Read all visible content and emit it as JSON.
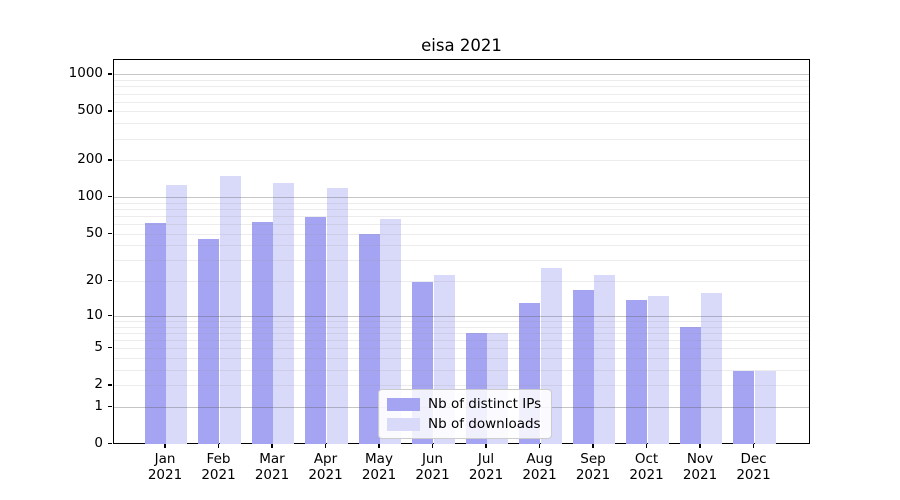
{
  "chart_data": {
    "type": "bar",
    "title": "eisa 2021",
    "categories": [
      "Jan 2021",
      "Feb 2021",
      "Mar 2021",
      "Apr 2021",
      "May 2021",
      "Jun 2021",
      "Jul 2021",
      "Aug 2021",
      "Sep 2021",
      "Oct 2021",
      "Nov 2021",
      "Dec 2021"
    ],
    "series": [
      {
        "name": "Nb of distinct IPs",
        "color": "#a4a4f2",
        "values": [
          62,
          46,
          63,
          69,
          50,
          20,
          7,
          13,
          17,
          14,
          8,
          3
        ]
      },
      {
        "name": "Nb of downloads",
        "color": "#d9d9fa",
        "values": [
          127,
          151,
          131,
          119,
          67,
          23,
          7,
          26,
          23,
          15,
          16,
          3
        ]
      }
    ],
    "yscale": "log1p",
    "ylim": [
      0,
      1000
    ],
    "yticks": [
      0,
      1,
      2,
      5,
      10,
      20,
      50,
      100,
      200,
      500,
      1000
    ],
    "grid": "on",
    "legend_position": "lower center",
    "axis_color": "#000000",
    "grid_major_color": "#c8c8c8",
    "grid_minor_color": "#ececec",
    "background_color": "#ffffff",
    "xlabel": "",
    "ylabel": ""
  }
}
